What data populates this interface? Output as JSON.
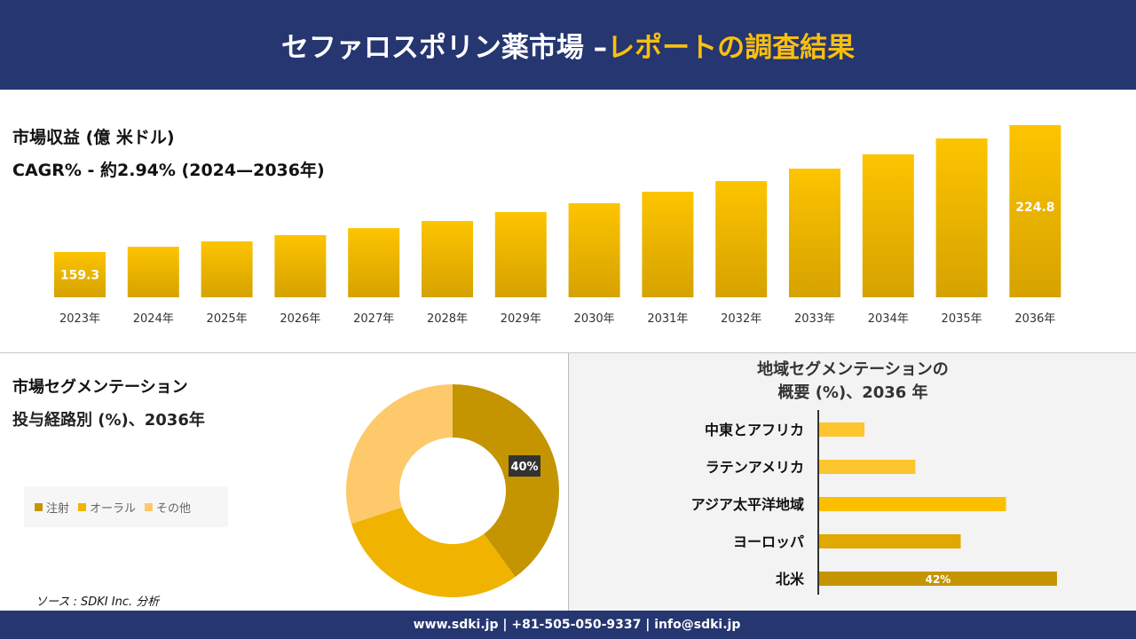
{
  "header": {
    "title_main": "セファロスポリン薬市場 –",
    "title_accent": "レポートの調査結果"
  },
  "revenue": {
    "title": "市場収益 (億 米ドル)",
    "cagr": "CAGR% - 約2.94% (2024—2036年)"
  },
  "segmentation": {
    "title": "市場セグメンテーション",
    "subtitle": "投与経路別 (%)、2036年"
  },
  "region": {
    "title_line1": "地域セグメンテーションの",
    "title_line2": "概要 (%)、2036 年"
  },
  "source": "ソース : SDKI Inc. 分析",
  "footer": "www.sdki.jp | +81-505-050-9337 | info@sdki.jp",
  "colors": {
    "header_bg": "#253670",
    "accent": "#fbbf0e",
    "dark_gold": "#c49500",
    "gold": "#f0b400",
    "light_gold": "#fdc96a"
  },
  "chart_data": [
    {
      "type": "bar",
      "categories": [
        "2023年",
        "2024年",
        "2025年",
        "2026年",
        "2027年",
        "2028年",
        "2029年",
        "2030年",
        "2031年",
        "2032年",
        "2033年",
        "2034年",
        "2035年",
        "2036年"
      ],
      "values": [
        159.3,
        162.0,
        164.8,
        168.0,
        171.6,
        175.3,
        179.9,
        184.5,
        190.4,
        195.9,
        202.3,
        209.7,
        217.9,
        224.8
      ],
      "data_labels": {
        "0": "159.3",
        "13": "224.8"
      }
    },
    {
      "type": "pie",
      "donut": true,
      "categories": [
        "注射",
        "オーラル",
        "その他"
      ],
      "values": [
        40,
        30,
        30
      ],
      "data_labels": {
        "0": "40%"
      },
      "colors": [
        "#c49500",
        "#f0b400",
        "#fdc96a"
      ],
      "legend": "left"
    },
    {
      "type": "bar",
      "orientation": "horizontal",
      "categories": [
        "中東とアフリカ",
        "ラテンアメリカ",
        "アジア太平洋地域",
        "ヨーロッパ",
        "北米"
      ],
      "values": [
        8,
        17,
        33,
        25,
        42
      ],
      "data_labels": {
        "4": "42%"
      },
      "colors": [
        "#fdc52e",
        "#fdc52e",
        "#fbbf00",
        "#e0a800",
        "#c49500"
      ]
    }
  ]
}
